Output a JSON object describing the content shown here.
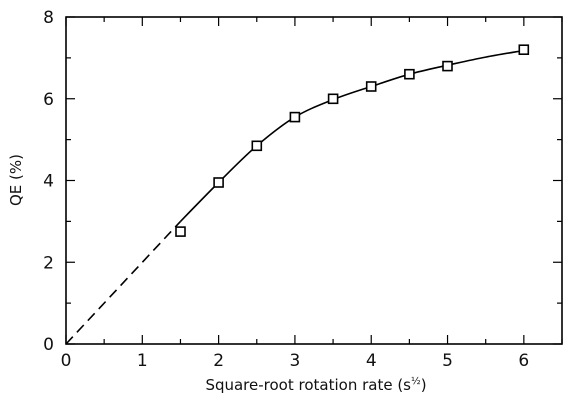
{
  "chart_data": {
    "type": "scatter",
    "title": "",
    "xlabel_main": "Square-root rotation rate (s",
    "xlabel_sup": "½",
    "xlabel_end": ")",
    "ylabel": "QE (%)",
    "xlim": [
      0,
      6.5
    ],
    "ylim": [
      0,
      8
    ],
    "x_ticks": [
      0,
      1,
      2,
      3,
      4,
      5,
      6
    ],
    "x_tick_labels": [
      "0",
      "1",
      "2",
      "3",
      "4",
      "5",
      "6"
    ],
    "y_ticks": [
      0,
      2,
      4,
      6,
      8
    ],
    "y_tick_labels": [
      "0",
      "2",
      "4",
      "6",
      "8"
    ],
    "grid": false,
    "series": [
      {
        "style": "square-markers",
        "x": [
          1.5,
          2.0,
          2.5,
          3.0,
          3.5,
          4.0,
          4.5,
          5.0,
          6.0
        ],
        "y": [
          2.75,
          3.95,
          4.85,
          5.55,
          6.0,
          6.3,
          6.6,
          6.8,
          7.2
        ]
      }
    ],
    "fit_curve": {
      "dashed_segment": {
        "x": [
          0,
          1.5
        ],
        "y": [
          0,
          3.0
        ]
      },
      "solid_segment": {
        "x": [
          1.5,
          2.0,
          2.5,
          3.0,
          3.5,
          4.0,
          4.5,
          5.0,
          5.5,
          6.0
        ],
        "y": [
          3.0,
          3.95,
          4.85,
          5.55,
          5.98,
          6.3,
          6.6,
          6.82,
          7.02,
          7.18
        ]
      }
    }
  }
}
